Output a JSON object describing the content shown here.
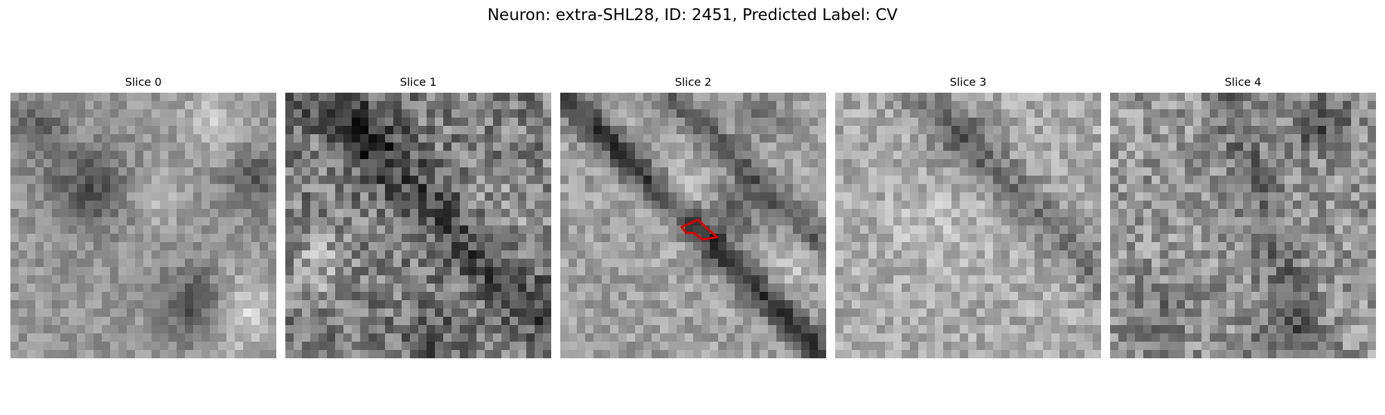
{
  "title": "Neuron: extra-SHL28, ID: 2451, Predicted Label: CV",
  "colors": {
    "background": "#ffffff",
    "colormap": "gray",
    "overlay_outline": "#e00000"
  },
  "panels": [
    {
      "label": "Slice 0",
      "texture": "smooth",
      "has_overlay": false
    },
    {
      "label": "Slice 1",
      "texture": "noisy",
      "has_overlay": false
    },
    {
      "label": "Slice 2",
      "texture": "diagonal-dark-bands",
      "has_overlay": true
    },
    {
      "label": "Slice 3",
      "texture": "light-noisy",
      "has_overlay": false
    },
    {
      "label": "Slice 4",
      "texture": "noisy",
      "has_overlay": false
    }
  ]
}
